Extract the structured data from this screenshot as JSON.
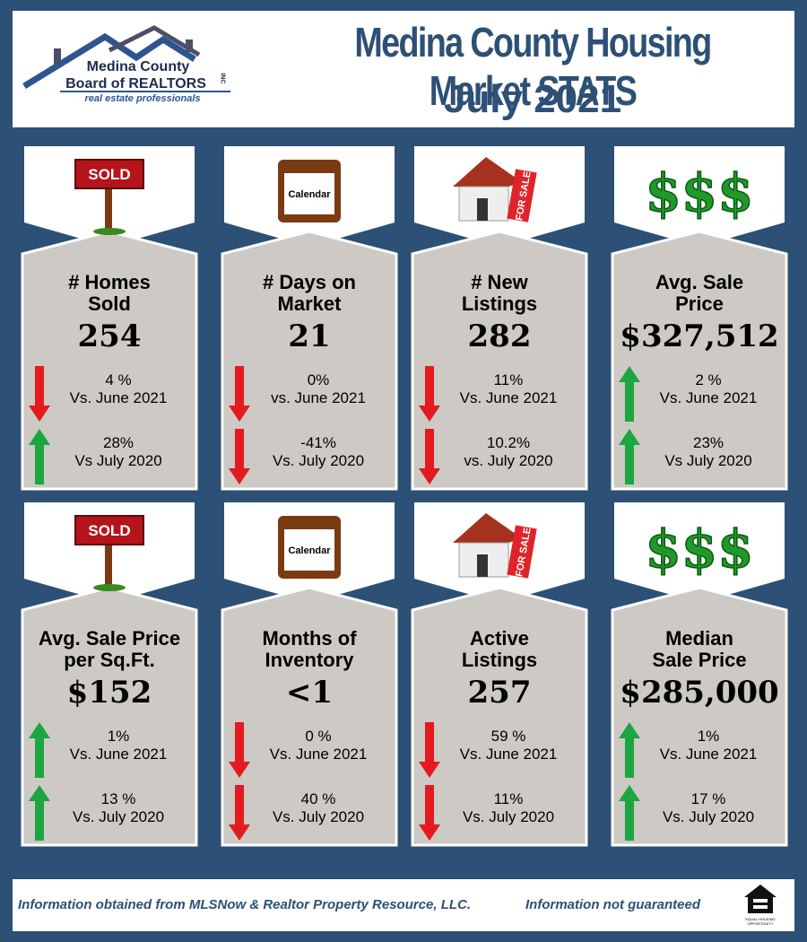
{
  "header": {
    "org": [
      "Medina County",
      "Board of REALTORS"
    ],
    "org_suffix": "INC",
    "tagline": "real estate professionals",
    "title": "Medina County Housing Market STATS",
    "subtitle": "July 2021"
  },
  "cards": [
    {
      "icon": "SOLD",
      "label": [
        "# Homes",
        "Sold"
      ],
      "value": "254",
      "comparisons": [
        {
          "direction": "down",
          "change": "4 %",
          "versus": "Vs. June 2021"
        },
        {
          "direction": "up",
          "change": "28%",
          "versus": "Vs July 2020"
        }
      ]
    },
    {
      "icon": "Calendar",
      "label": [
        "# Days on",
        "Market"
      ],
      "value": "21",
      "comparisons": [
        {
          "direction": "down",
          "change": "0%",
          "versus": "vs. June 2021"
        },
        {
          "direction": "down",
          "change": "-41%",
          "versus": "Vs. July 2020"
        }
      ]
    },
    {
      "icon": "FOR SALE",
      "label": [
        "# New",
        "Listings"
      ],
      "value": "282",
      "comparisons": [
        {
          "direction": "down",
          "change": "11%",
          "versus": "Vs. June 2021"
        },
        {
          "direction": "down",
          "change": "10.2%",
          "versus": "vs. July 2020"
        }
      ]
    },
    {
      "icon": "$$$",
      "label": [
        "Avg. Sale",
        "Price"
      ],
      "value": "$327,512",
      "comparisons": [
        {
          "direction": "up",
          "change": "2 %",
          "versus": "Vs. June 2021"
        },
        {
          "direction": "up",
          "change": "23%",
          "versus": "Vs July 2020"
        }
      ]
    },
    {
      "icon": "SOLD",
      "label": [
        "Avg. Sale Price",
        "per Sq.Ft."
      ],
      "value": "$152",
      "comparisons": [
        {
          "direction": "up",
          "change": "1%",
          "versus": "Vs. June 2021"
        },
        {
          "direction": "up",
          "change": "13 %",
          "versus": "Vs. July 2020"
        }
      ]
    },
    {
      "icon": "Calendar",
      "label": [
        "Months of",
        "Inventory"
      ],
      "value": "<1",
      "comparisons": [
        {
          "direction": "down",
          "change": "0 %",
          "versus": "Vs. June 2021"
        },
        {
          "direction": "down",
          "change": "40 %",
          "versus": "Vs. July 2020"
        }
      ]
    },
    {
      "icon": "FOR SALE",
      "label": [
        "Active",
        "Listings"
      ],
      "value": "257",
      "comparisons": [
        {
          "direction": "down",
          "change": "59 %",
          "versus": "Vs. June 2021"
        },
        {
          "direction": "down",
          "change": "11%",
          "versus": "Vs. July 2020"
        }
      ]
    },
    {
      "icon": "$$$",
      "label": [
        "Median",
        "Sale Price"
      ],
      "value": "$285,000",
      "comparisons": [
        {
          "direction": "up",
          "change": "1%",
          "versus": "Vs. June 2021"
        },
        {
          "direction": "up",
          "change": "17 %",
          "versus": "Vs. July 2020"
        }
      ]
    }
  ],
  "footer": {
    "source": "Information obtained from MLSNow & Realtor Property Resource, LLC.",
    "disclaimer": "Information not guaranteed",
    "badge": "EQUAL HOUSING OPPORTUNITY"
  }
}
